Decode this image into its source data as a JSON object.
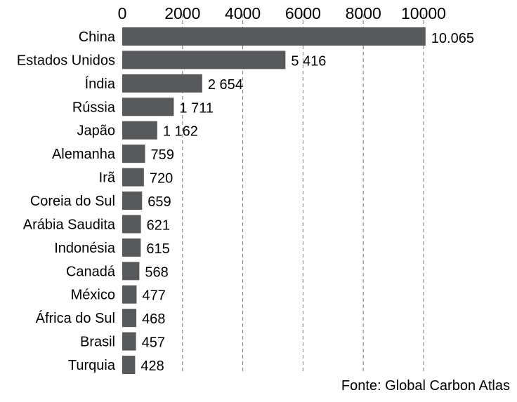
{
  "colors": {
    "bar": "#58595b",
    "grid": "#7a7a7a",
    "text": "#000000",
    "background": "#ffffff"
  },
  "chart_data": {
    "type": "bar",
    "orientation": "horizontal",
    "categories": [
      "China",
      "Estados Unidos",
      "Índia",
      "Rússia",
      "Japão",
      "Alemanha",
      "Irã",
      "Coreia do Sul",
      "Arábia Saudita",
      "Indonésia",
      "Canadá",
      "México",
      "África do Sul",
      "Brasil",
      "Turquia"
    ],
    "values": [
      10065,
      5416,
      2654,
      1711,
      1162,
      759,
      720,
      659,
      621,
      615,
      568,
      477,
      468,
      457,
      428
    ],
    "value_labels": [
      "10.065",
      "5 416",
      "2 654",
      "1 711",
      "1 162",
      "759",
      "720",
      "659",
      "621",
      "615",
      "568",
      "477",
      "468",
      "457",
      "428"
    ],
    "x_ticks": [
      0,
      2000,
      4000,
      6000,
      8000,
      10000
    ],
    "x_tick_labels": [
      "0",
      "2000",
      "4000",
      "6000",
      "8000",
      "10000"
    ],
    "xlim": [
      0,
      10000
    ],
    "x_axis_position": "top",
    "grid": "vertical dashed",
    "legend": "none",
    "source": "Fonte: Global Carbon Atlas"
  }
}
